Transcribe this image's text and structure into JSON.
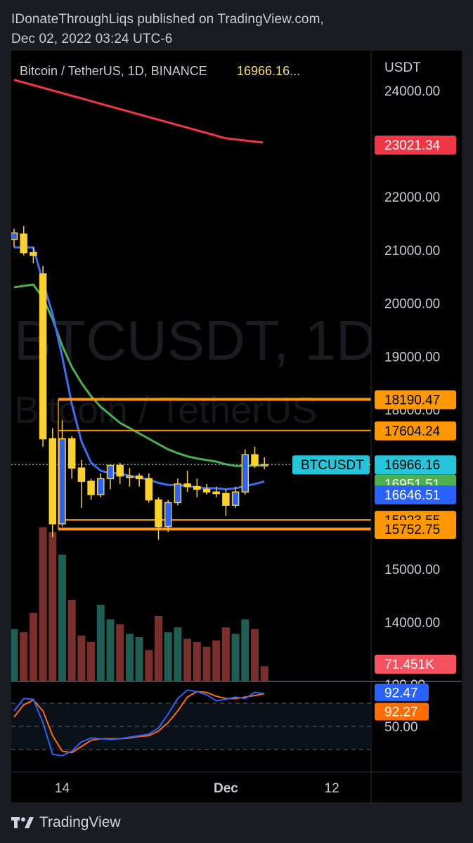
{
  "header": {
    "line1": "IDonateThroughLiqs published on TradingView.com,",
    "line2": "Dec 02, 2022 03:24 UTC-6"
  },
  "footer": {
    "brand": "TradingView",
    "logo_icon": "tradingview-logo-icon"
  },
  "chart_data": {
    "type": "candlestick",
    "legend": {
      "symbol": "Bitcoin / TetherUS, 1D, BINANCE",
      "last_price": "16966.16..."
    },
    "watermark": {
      "line1": "BTCUSDT, 1D",
      "line2": "Bitcoin / TetherUS"
    },
    "currency": "USDT",
    "y_ticks": [
      "24000.00",
      "22000.00",
      "21000.00",
      "20000.00",
      "19000.00",
      "18000.00",
      "15000.00",
      "14000.00"
    ],
    "y_tick_values": [
      24000,
      22000,
      21000,
      20000,
      19000,
      18000,
      15000,
      14000
    ],
    "ylim": [
      12900,
      24750
    ],
    "x_ticks": [
      {
        "label": "14",
        "day": 14,
        "bold": false
      },
      {
        "label": "Dec",
        "day": 31,
        "bold": true
      },
      {
        "label": "12",
        "day": 42,
        "bold": false
      }
    ],
    "x_range_days": [
      9,
      45
    ],
    "candles": [
      {
        "day": 9,
        "open": 21200,
        "high": 21400,
        "low": 21050,
        "close": 21320
      },
      {
        "day": 10,
        "open": 21300,
        "high": 21450,
        "low": 20900,
        "close": 20950
      },
      {
        "day": 11,
        "open": 20950,
        "high": 21050,
        "low": 20750,
        "close": 20900
      },
      {
        "day": 12,
        "open": 20550,
        "high": 20700,
        "low": 17300,
        "close": 17450
      },
      {
        "day": 13,
        "open": 17450,
        "high": 17650,
        "low": 15600,
        "close": 15850
      },
      {
        "day": 14,
        "open": 15850,
        "high": 17800,
        "low": 15800,
        "close": 17450
      },
      {
        "day": 15,
        "open": 17450,
        "high": 17500,
        "low": 16700,
        "close": 16900
      },
      {
        "day": 16,
        "open": 16900,
        "high": 17050,
        "low": 16150,
        "close": 16650
      },
      {
        "day": 17,
        "open": 16650,
        "high": 16700,
        "low": 16300,
        "close": 16400
      },
      {
        "day": 18,
        "open": 16400,
        "high": 16800,
        "low": 16350,
        "close": 16700
      },
      {
        "day": 19,
        "open": 16700,
        "high": 16950,
        "low": 16500,
        "close": 16950
      },
      {
        "day": 20,
        "open": 16950,
        "high": 17000,
        "low": 16600,
        "close": 16750
      },
      {
        "day": 21,
        "open": 16750,
        "high": 16900,
        "low": 16550,
        "close": 16750
      },
      {
        "day": 22,
        "open": 16750,
        "high": 16800,
        "low": 16550,
        "close": 16700
      },
      {
        "day": 23,
        "open": 16700,
        "high": 16800,
        "low": 16250,
        "close": 16300
      },
      {
        "day": 24,
        "open": 16300,
        "high": 16350,
        "low": 15550,
        "close": 15800
      },
      {
        "day": 25,
        "open": 15800,
        "high": 16300,
        "low": 15700,
        "close": 16250
      },
      {
        "day": 26,
        "open": 16250,
        "high": 16700,
        "low": 16200,
        "close": 16600
      },
      {
        "day": 27,
        "open": 16600,
        "high": 16850,
        "low": 16450,
        "close": 16550
      },
      {
        "day": 28,
        "open": 16550,
        "high": 16700,
        "low": 16350,
        "close": 16500
      },
      {
        "day": 29,
        "open": 16500,
        "high": 16600,
        "low": 16400,
        "close": 16450
      },
      {
        "day": 30,
        "open": 16450,
        "high": 16550,
        "low": 16350,
        "close": 16420
      },
      {
        "day": 31,
        "open": 16420,
        "high": 16500,
        "low": 16000,
        "close": 16200
      },
      {
        "day": 32,
        "open": 16200,
        "high": 16550,
        "low": 16150,
        "close": 16450
      },
      {
        "day": 33,
        "open": 16450,
        "high": 17250,
        "low": 16400,
        "close": 17150
      },
      {
        "day": 34,
        "open": 17150,
        "high": 17300,
        "low": 16900,
        "close": 16950
      },
      {
        "day": 35,
        "open": 16950,
        "high": 17100,
        "low": 16880,
        "close": 16966
      }
    ],
    "ma_red": {
      "color": "#f2364a",
      "points": [
        [
          9,
          24200
        ],
        [
          12,
          24050
        ],
        [
          16,
          23850
        ],
        [
          20,
          23650
        ],
        [
          24,
          23450
        ],
        [
          28,
          23250
        ],
        [
          31,
          23100
        ],
        [
          34,
          23021
        ]
      ]
    },
    "ma_blue": {
      "color": "#3b6ef2",
      "points": [
        [
          9,
          21050
        ],
        [
          11,
          21050
        ],
        [
          12,
          20400
        ],
        [
          13,
          19800
        ],
        [
          14,
          19000
        ],
        [
          15,
          18100
        ],
        [
          16,
          17400
        ],
        [
          17,
          17000
        ],
        [
          18,
          16850
        ],
        [
          19,
          16800
        ],
        [
          20,
          16800
        ],
        [
          21,
          16750
        ],
        [
          22,
          16720
        ],
        [
          23,
          16680
        ],
        [
          24,
          16620
        ],
        [
          25,
          16580
        ],
        [
          26,
          16580
        ],
        [
          27,
          16560
        ],
        [
          28,
          16540
        ],
        [
          29,
          16520
        ],
        [
          30,
          16520
        ],
        [
          31,
          16500
        ],
        [
          32,
          16520
        ],
        [
          33,
          16560
        ],
        [
          34,
          16600
        ],
        [
          35,
          16646
        ]
      ]
    },
    "ma_green": {
      "color": "#4caf50",
      "points": [
        [
          9,
          20300
        ],
        [
          11,
          20350
        ],
        [
          12,
          20100
        ],
        [
          13,
          19700
        ],
        [
          14,
          19200
        ],
        [
          15,
          18800
        ],
        [
          16,
          18500
        ],
        [
          17,
          18250
        ],
        [
          18,
          18050
        ],
        [
          19,
          17900
        ],
        [
          20,
          17750
        ],
        [
          21,
          17650
        ],
        [
          22,
          17550
        ],
        [
          23,
          17450
        ],
        [
          24,
          17350
        ],
        [
          25,
          17250
        ],
        [
          26,
          17180
        ],
        [
          27,
          17120
        ],
        [
          28,
          17080
        ],
        [
          29,
          17050
        ],
        [
          30,
          17020
        ],
        [
          31,
          16970
        ],
        [
          32,
          16940
        ],
        [
          33,
          16940
        ],
        [
          34,
          16945
        ],
        [
          35,
          16951
        ]
      ]
    },
    "horizontal_levels": [
      {
        "value": 18190.47,
        "label": "18190.47",
        "start_day": 13.6,
        "thick": true
      },
      {
        "value": 17604.24,
        "label": "17604.24",
        "start_day": 13.6,
        "thick": false
      },
      {
        "value": 15923.55,
        "label": "15923.55",
        "start_day": 13.6,
        "thick": false
      },
      {
        "value": 15752.75,
        "label": "15752.75",
        "start_day": 13.6,
        "thick": true
      }
    ],
    "price_tags": [
      {
        "label": "23021.34",
        "value": 23021.34,
        "bg": "#f23645",
        "fg": "#ffffff"
      },
      {
        "label": "16966.16",
        "value": 16966.16,
        "bg": "#26c6da",
        "fg": "#000000",
        "name": "BTCUSDT"
      },
      {
        "label": "16951.51",
        "value": 16951.51,
        "bg": "#4caf50",
        "fg": "#ffffff",
        "offset": 26
      },
      {
        "label": "16646.51",
        "value": 16646.51,
        "bg": "#2962ff",
        "fg": "#ffffff"
      }
    ],
    "level_tag_style": {
      "bg": "#ff9800",
      "fg": "#000000"
    },
    "volume": {
      "label": "71.451K",
      "label_bg": "#f7525f",
      "label_fg": "#ffffff",
      "up_color": "#1e5e55",
      "down_color": "#7a2f2c",
      "bars": [
        {
          "day": 9,
          "v": 0.32,
          "up": true
        },
        {
          "day": 10,
          "v": 0.3,
          "up": false
        },
        {
          "day": 11,
          "v": 0.42,
          "up": false
        },
        {
          "day": 12,
          "v": 0.95,
          "up": false
        },
        {
          "day": 13,
          "v": 0.92,
          "up": false
        },
        {
          "day": 14,
          "v": 0.78,
          "up": true
        },
        {
          "day": 15,
          "v": 0.5,
          "up": false
        },
        {
          "day": 16,
          "v": 0.28,
          "up": false
        },
        {
          "day": 17,
          "v": 0.24,
          "up": false
        },
        {
          "day": 18,
          "v": 0.47,
          "up": true
        },
        {
          "day": 19,
          "v": 0.38,
          "up": true
        },
        {
          "day": 20,
          "v": 0.35,
          "up": false
        },
        {
          "day": 21,
          "v": 0.29,
          "up": true
        },
        {
          "day": 22,
          "v": 0.27,
          "up": true
        },
        {
          "day": 23,
          "v": 0.19,
          "up": false
        },
        {
          "day": 24,
          "v": 0.4,
          "up": false
        },
        {
          "day": 25,
          "v": 0.3,
          "up": true
        },
        {
          "day": 26,
          "v": 0.33,
          "up": true
        },
        {
          "day": 27,
          "v": 0.26,
          "up": false
        },
        {
          "day": 28,
          "v": 0.24,
          "up": false
        },
        {
          "day": 29,
          "v": 0.21,
          "up": false
        },
        {
          "day": 30,
          "v": 0.25,
          "up": false
        },
        {
          "day": 31,
          "v": 0.33,
          "up": false
        },
        {
          "day": 32,
          "v": 0.29,
          "up": true
        },
        {
          "day": 33,
          "v": 0.38,
          "up": true
        },
        {
          "day": 34,
          "v": 0.32,
          "up": false
        },
        {
          "day": 35,
          "v": 0.09,
          "up": false
        }
      ]
    },
    "stoch": {
      "k_color": "#2962ff",
      "d_color": "#ff6d00",
      "levels": [
        80,
        50,
        20
      ],
      "tick_label": "50.00",
      "tick_top_partial": "100.00",
      "k_label": "92.47",
      "d_label": "92.27",
      "k": [
        [
          9,
          70
        ],
        [
          10,
          86
        ],
        [
          11,
          85
        ],
        [
          12,
          55
        ],
        [
          13,
          14
        ],
        [
          14,
          12
        ],
        [
          15,
          18
        ],
        [
          16,
          30
        ],
        [
          17,
          35
        ],
        [
          18,
          34
        ],
        [
          19,
          33
        ],
        [
          20,
          34
        ],
        [
          21,
          36
        ],
        [
          22,
          38
        ],
        [
          23,
          40
        ],
        [
          24,
          48
        ],
        [
          25,
          66
        ],
        [
          26,
          86
        ],
        [
          27,
          97
        ],
        [
          28,
          95
        ],
        [
          29,
          91
        ],
        [
          30,
          83
        ],
        [
          31,
          85
        ],
        [
          32,
          88
        ],
        [
          33,
          86
        ],
        [
          34,
          94
        ],
        [
          35,
          92.47
        ]
      ],
      "d": [
        [
          9,
          62
        ],
        [
          10,
          78
        ],
        [
          11,
          84
        ],
        [
          12,
          70
        ],
        [
          13,
          38
        ],
        [
          14,
          18
        ],
        [
          15,
          16
        ],
        [
          16,
          24
        ],
        [
          17,
          32
        ],
        [
          18,
          34
        ],
        [
          19,
          34
        ],
        [
          20,
          34
        ],
        [
          21,
          35
        ],
        [
          22,
          37
        ],
        [
          23,
          38
        ],
        [
          24,
          44
        ],
        [
          25,
          55
        ],
        [
          26,
          70
        ],
        [
          27,
          88
        ],
        [
          28,
          95
        ],
        [
          29,
          94
        ],
        [
          30,
          89
        ],
        [
          31,
          86
        ],
        [
          32,
          86
        ],
        [
          33,
          88
        ],
        [
          34,
          90
        ],
        [
          35,
          92.27
        ]
      ]
    }
  }
}
